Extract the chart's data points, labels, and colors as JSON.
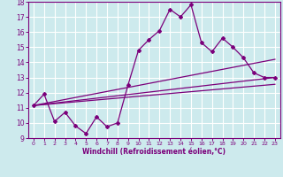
{
  "xlabel": "Windchill (Refroidissement éolien,°C)",
  "bg_color": "#cdeaed",
  "grid_color": "#ffffff",
  "line_color": "#7b007b",
  "xlim": [
    -0.5,
    23.5
  ],
  "ylim": [
    9,
    18
  ],
  "xticks": [
    0,
    1,
    2,
    3,
    4,
    5,
    6,
    7,
    8,
    9,
    10,
    11,
    12,
    13,
    14,
    15,
    16,
    17,
    18,
    19,
    20,
    21,
    22,
    23
  ],
  "yticks": [
    9,
    10,
    11,
    12,
    13,
    14,
    15,
    16,
    17,
    18
  ],
  "data_x": [
    0,
    1,
    2,
    3,
    4,
    5,
    6,
    7,
    8,
    9,
    10,
    11,
    12,
    13,
    14,
    15,
    16,
    17,
    18,
    19,
    20,
    21,
    22,
    23
  ],
  "data_y": [
    11.15,
    11.9,
    10.1,
    10.7,
    9.8,
    9.3,
    10.4,
    9.75,
    10.0,
    12.5,
    14.8,
    15.5,
    16.1,
    17.5,
    17.0,
    17.8,
    15.3,
    14.7,
    15.6,
    15.0,
    14.3,
    13.3,
    13.0,
    13.0
  ],
  "trend1_x": [
    0,
    23
  ],
  "trend1_y": [
    11.15,
    13.0
  ],
  "trend2_x": [
    0,
    23
  ],
  "trend2_y": [
    11.15,
    12.55
  ],
  "trend3_x": [
    0,
    23
  ],
  "trend3_y": [
    11.15,
    14.2
  ]
}
